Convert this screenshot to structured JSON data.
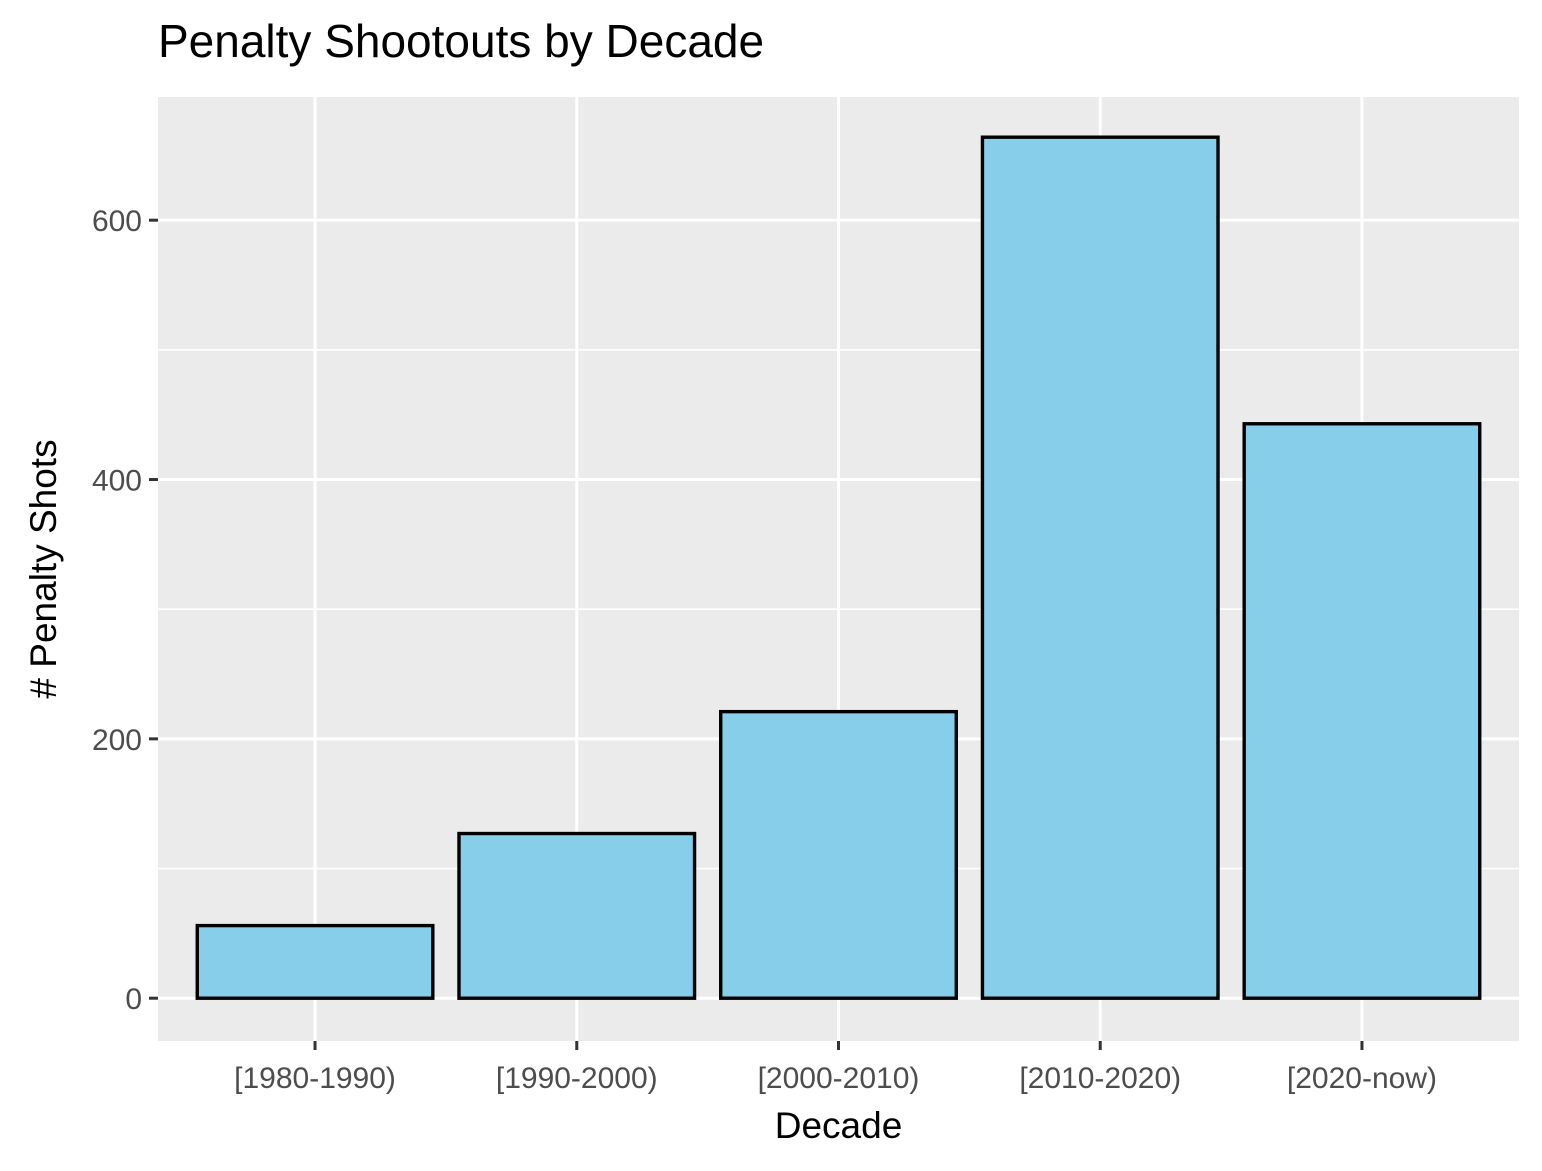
{
  "chart_data": {
    "type": "bar",
    "title": "Penalty Shootouts by Decade",
    "xlabel": "Decade",
    "ylabel": "# Penalty Shots",
    "categories": [
      "[1980-1990)",
      "[1990-2000)",
      "[2000-2010)",
      "[2010-2020)",
      "[2020-now)"
    ],
    "values": [
      56,
      127,
      221,
      664,
      443
    ],
    "yticks": [
      0,
      200,
      400,
      600
    ],
    "ytick_labels": [
      "0",
      "200",
      "400",
      "600"
    ],
    "ylim": [
      -33,
      695
    ],
    "grid": true,
    "legend": "none",
    "colors": {
      "panel_background": "#ebebeb",
      "grid": "#ffffff",
      "bar_fill": "#87ceeb",
      "bar_stroke": "#000000",
      "tick_text": "#4d4d4d",
      "tick_mark": "#333333"
    }
  }
}
